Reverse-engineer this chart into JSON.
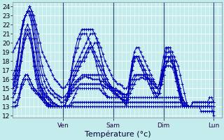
{
  "xlabel": "Température (°c)",
  "bg_color": "#c5eced",
  "grid_color": "#ffffff",
  "line_color": "#0000bb",
  "marker": "+",
  "ylim": [
    11.8,
    24.5
  ],
  "yticks": [
    12,
    13,
    14,
    15,
    16,
    17,
    18,
    19,
    20,
    21,
    22,
    23,
    24
  ],
  "day_labels": [
    "Ven",
    "Sam",
    "Dim",
    "Lun"
  ],
  "day_positions": [
    24,
    48,
    72,
    96
  ],
  "xlim": [
    0,
    100
  ],
  "x_total": 97,
  "tick_label_fontsize": 6.5,
  "axis_label_fontsize": 8,
  "series": [
    [
      19.0,
      19.5,
      20.0,
      20.5,
      21.0,
      22.0,
      23.0,
      23.5,
      24.0,
      23.5,
      23.0,
      22.0,
      21.0,
      20.0,
      19.0,
      18.5,
      18.0,
      17.5,
      17.0,
      16.5,
      16.0,
      15.8,
      15.5,
      15.2,
      15.0,
      15.2,
      15.5,
      16.0,
      16.5,
      17.0,
      17.5,
      18.0,
      18.5,
      19.0,
      19.5,
      20.0,
      20.5,
      21.0,
      21.0,
      21.0,
      20.5,
      20.0,
      19.5,
      18.8,
      18.0,
      17.5,
      17.0,
      16.5,
      16.0,
      15.8,
      15.5,
      15.5,
      15.3,
      15.0,
      15.0,
      15.2,
      16.5,
      18.0,
      18.5,
      18.5,
      18.0,
      17.5,
      17.0,
      16.5,
      16.0,
      15.5,
      15.0,
      14.5,
      14.5,
      14.5,
      15.0,
      16.0,
      17.5,
      19.0,
      19.5,
      19.5,
      19.0,
      18.5,
      18.0,
      17.5,
      16.5,
      15.5,
      14.5,
      13.5,
      13.0,
      13.0,
      13.0,
      13.0,
      13.0,
      13.0,
      13.0,
      13.0,
      13.0,
      13.0,
      13.0,
      13.0,
      12.0
    ],
    [
      16.5,
      17.0,
      18.0,
      19.5,
      21.0,
      22.0,
      23.0,
      23.5,
      24.0,
      23.5,
      22.5,
      21.5,
      20.0,
      18.5,
      17.5,
      16.5,
      16.0,
      15.5,
      15.0,
      14.8,
      14.5,
      14.3,
      14.2,
      14.0,
      14.0,
      14.2,
      14.5,
      15.0,
      15.5,
      16.0,
      16.5,
      17.0,
      17.5,
      18.0,
      18.5,
      19.0,
      19.5,
      20.0,
      19.5,
      19.0,
      18.5,
      18.0,
      17.5,
      17.0,
      16.5,
      16.0,
      15.5,
      15.2,
      15.0,
      14.8,
      14.7,
      14.6,
      14.5,
      14.4,
      14.3,
      14.5,
      16.0,
      17.5,
      18.5,
      18.5,
      18.0,
      17.5,
      17.0,
      16.5,
      16.0,
      15.5,
      15.0,
      14.5,
      14.0,
      14.0,
      14.5,
      15.5,
      16.5,
      17.5,
      18.0,
      18.5,
      18.0,
      17.5,
      17.0,
      16.0,
      15.0,
      14.0,
      13.5,
      13.0,
      13.0,
      13.0,
      13.0,
      13.0,
      13.0,
      13.0,
      13.0,
      13.0,
      13.0,
      13.0,
      13.0,
      13.0,
      13.0
    ],
    [
      16.0,
      16.5,
      17.5,
      19.0,
      21.0,
      22.5,
      23.0,
      23.5,
      23.5,
      23.0,
      22.0,
      20.5,
      19.0,
      17.5,
      16.5,
      15.8,
      15.2,
      14.8,
      14.5,
      14.3,
      14.0,
      14.0,
      13.8,
      13.5,
      13.5,
      13.8,
      14.2,
      14.8,
      15.5,
      16.0,
      16.5,
      17.0,
      17.5,
      18.0,
      18.0,
      18.5,
      19.0,
      19.5,
      19.0,
      18.5,
      18.0,
      17.5,
      17.0,
      16.5,
      16.0,
      15.5,
      15.0,
      14.8,
      14.5,
      14.3,
      14.2,
      14.0,
      13.9,
      13.8,
      13.7,
      14.0,
      15.5,
      17.0,
      18.0,
      18.5,
      18.5,
      18.0,
      17.5,
      17.0,
      16.5,
      16.0,
      15.5,
      15.0,
      14.5,
      14.0,
      14.5,
      15.5,
      16.5,
      17.5,
      18.0,
      18.5,
      18.0,
      17.5,
      16.5,
      15.5,
      14.5,
      13.8,
      13.5,
      13.2,
      13.0,
      13.0,
      13.0,
      13.0,
      13.0,
      13.0,
      13.0,
      13.0,
      13.0,
      13.0,
      13.5,
      13.5,
      13.5
    ],
    [
      15.5,
      16.2,
      17.5,
      19.5,
      21.5,
      22.5,
      23.0,
      23.5,
      23.5,
      22.5,
      21.0,
      19.5,
      18.0,
      16.5,
      15.5,
      15.0,
      14.5,
      14.0,
      13.8,
      13.5,
      13.3,
      13.2,
      13.0,
      13.0,
      13.0,
      13.2,
      13.8,
      14.5,
      15.5,
      16.5,
      17.0,
      17.5,
      18.0,
      18.0,
      18.5,
      19.0,
      19.5,
      19.5,
      19.5,
      20.0,
      20.0,
      19.5,
      18.5,
      17.5,
      16.5,
      16.0,
      15.5,
      15.0,
      14.8,
      14.5,
      14.3,
      14.0,
      13.8,
      13.7,
      13.5,
      14.0,
      16.0,
      17.5,
      18.5,
      18.5,
      18.5,
      18.0,
      17.5,
      17.0,
      16.5,
      16.0,
      15.5,
      15.0,
      14.5,
      14.0,
      14.5,
      15.8,
      17.0,
      18.5,
      19.0,
      19.0,
      18.5,
      18.0,
      17.0,
      15.5,
      14.0,
      13.2,
      13.0,
      13.0,
      13.0,
      13.0,
      13.0,
      13.0,
      13.0,
      13.0,
      13.0,
      13.0,
      13.0,
      13.0,
      13.0,
      13.0,
      13.0
    ],
    [
      15.0,
      15.8,
      17.0,
      19.0,
      21.0,
      22.5,
      23.0,
      23.5,
      23.0,
      22.0,
      20.5,
      19.0,
      17.0,
      15.5,
      14.5,
      14.0,
      13.5,
      13.0,
      13.0,
      13.0,
      13.0,
      13.0,
      13.0,
      13.0,
      13.0,
      13.2,
      14.0,
      15.5,
      17.0,
      18.5,
      19.5,
      20.5,
      21.0,
      21.5,
      21.5,
      21.5,
      21.5,
      21.5,
      21.5,
      21.0,
      20.5,
      19.5,
      18.5,
      17.5,
      16.5,
      16.0,
      15.5,
      15.0,
      14.8,
      14.5,
      14.2,
      14.0,
      13.8,
      13.5,
      13.2,
      13.5,
      16.0,
      18.0,
      19.0,
      19.5,
      19.5,
      19.0,
      18.5,
      18.0,
      17.5,
      17.0,
      16.5,
      16.0,
      15.5,
      15.0,
      15.5,
      17.0,
      18.5,
      19.5,
      19.5,
      19.0,
      18.5,
      18.0,
      17.0,
      15.5,
      14.0,
      13.2,
      13.0,
      13.0,
      13.0,
      13.0,
      13.0,
      13.0,
      13.0,
      13.0,
      12.5,
      12.5,
      12.5,
      12.5,
      12.5,
      12.5,
      12.5
    ],
    [
      15.5,
      15.8,
      16.5,
      17.5,
      19.0,
      20.5,
      21.5,
      22.0,
      21.5,
      20.5,
      19.0,
      17.5,
      16.5,
      15.5,
      15.0,
      14.5,
      14.2,
      14.0,
      13.8,
      13.5,
      13.3,
      13.2,
      13.0,
      13.0,
      13.0,
      13.2,
      13.8,
      14.5,
      15.0,
      15.5,
      15.8,
      16.0,
      16.2,
      16.5,
      16.5,
      16.5,
      16.5,
      16.5,
      16.5,
      16.5,
      16.5,
      16.5,
      16.5,
      16.0,
      15.8,
      15.5,
      15.3,
      15.2,
      15.0,
      15.0,
      14.8,
      14.7,
      14.5,
      14.3,
      14.0,
      14.5,
      15.5,
      16.0,
      16.5,
      16.5,
      16.5,
      16.5,
      16.5,
      16.5,
      16.5,
      16.5,
      16.0,
      15.8,
      15.5,
      15.0,
      15.5,
      16.5,
      17.5,
      18.5,
      18.5,
      18.5,
      18.0,
      17.5,
      16.5,
      15.5,
      14.5,
      13.8,
      13.5,
      13.2,
      13.0,
      13.0,
      13.5,
      13.5,
      13.5,
      13.5,
      13.5,
      13.5,
      13.5,
      13.5,
      14.0,
      14.0,
      13.5
    ],
    [
      15.0,
      15.3,
      16.0,
      17.0,
      18.5,
      20.0,
      21.0,
      21.5,
      21.0,
      20.0,
      18.5,
      17.0,
      16.0,
      15.2,
      14.8,
      14.3,
      14.0,
      13.8,
      13.5,
      13.3,
      13.0,
      13.0,
      13.0,
      13.0,
      13.0,
      13.2,
      13.8,
      14.2,
      14.8,
      15.2,
      15.5,
      15.8,
      16.0,
      16.2,
      16.3,
      16.3,
      16.2,
      16.2,
      16.0,
      16.0,
      16.0,
      16.0,
      15.8,
      15.8,
      15.5,
      15.3,
      15.2,
      15.0,
      15.0,
      14.8,
      14.7,
      14.5,
      14.3,
      14.0,
      14.0,
      14.5,
      15.0,
      15.5,
      16.0,
      16.5,
      16.5,
      16.5,
      16.5,
      16.3,
      16.2,
      16.0,
      15.8,
      15.5,
      15.2,
      15.0,
      15.5,
      16.5,
      17.3,
      18.0,
      18.0,
      18.0,
      17.8,
      17.2,
      16.2,
      15.2,
      14.0,
      13.5,
      13.2,
      13.0,
      13.0,
      13.0,
      13.5,
      13.5,
      13.5,
      13.5,
      13.5,
      13.5,
      13.5,
      13.5,
      13.5,
      13.5,
      13.5
    ],
    [
      14.5,
      14.8,
      15.5,
      16.5,
      18.0,
      19.5,
      20.5,
      21.0,
      20.5,
      19.5,
      18.0,
      16.5,
      15.5,
      14.8,
      14.3,
      13.8,
      13.5,
      13.3,
      13.0,
      13.0,
      13.0,
      13.0,
      13.0,
      13.0,
      13.0,
      13.2,
      13.8,
      14.2,
      14.5,
      14.8,
      15.0,
      15.2,
      15.5,
      15.5,
      15.5,
      15.5,
      15.5,
      15.5,
      15.5,
      15.5,
      15.5,
      15.5,
      15.5,
      15.3,
      15.2,
      15.0,
      15.0,
      14.8,
      14.7,
      14.5,
      14.3,
      14.0,
      13.8,
      13.5,
      13.3,
      13.8,
      14.5,
      15.0,
      15.5,
      16.0,
      16.0,
      16.2,
      16.2,
      16.0,
      16.0,
      16.0,
      15.8,
      15.5,
      15.2,
      15.0,
      15.5,
      16.3,
      17.0,
      17.5,
      17.5,
      17.5,
      17.3,
      16.8,
      15.8,
      14.8,
      13.8,
      13.2,
      13.0,
      13.0,
      13.0,
      13.0,
      13.0,
      13.0,
      13.0,
      13.0,
      13.0,
      13.0,
      13.0,
      13.0,
      13.0,
      13.0,
      13.0
    ],
    [
      14.0,
      14.5,
      15.2,
      16.5,
      18.0,
      19.5,
      20.5,
      21.0,
      20.5,
      19.5,
      17.5,
      16.0,
      15.0,
      14.2,
      13.8,
      13.5,
      13.2,
      13.0,
      13.0,
      13.0,
      13.0,
      13.0,
      13.0,
      13.0,
      13.0,
      13.2,
      14.0,
      15.0,
      16.5,
      18.0,
      19.0,
      19.5,
      20.5,
      21.0,
      21.0,
      21.0,
      20.5,
      20.0,
      19.5,
      18.5,
      17.5,
      16.5,
      15.5,
      15.0,
      14.5,
      14.0,
      14.0,
      14.0,
      14.0,
      14.0,
      14.0,
      14.0,
      14.0,
      14.0,
      14.0,
      14.5,
      16.0,
      17.5,
      18.5,
      18.5,
      18.5,
      18.0,
      17.5,
      17.0,
      16.5,
      16.0,
      15.5,
      15.0,
      14.5,
      14.0,
      14.5,
      15.5,
      16.5,
      17.5,
      18.0,
      18.5,
      18.0,
      17.5,
      16.5,
      15.5,
      14.5,
      13.5,
      13.2,
      13.0,
      13.0,
      13.0,
      13.0,
      13.0,
      13.0,
      13.0,
      13.0,
      13.0,
      13.0,
      13.0,
      13.0,
      13.0,
      13.0
    ],
    [
      13.5,
      13.5,
      13.8,
      14.5,
      15.5,
      16.0,
      16.5,
      16.5,
      16.0,
      15.5,
      15.0,
      14.8,
      14.5,
      14.3,
      14.0,
      13.8,
      13.5,
      13.3,
      13.2,
      13.0,
      13.0,
      13.0,
      13.0,
      13.0,
      13.0,
      13.0,
      13.0,
      13.0,
      13.2,
      13.5,
      13.5,
      13.5,
      13.5,
      13.5,
      13.5,
      13.5,
      13.5,
      13.5,
      13.5,
      13.5,
      13.5,
      13.5,
      13.5,
      13.5,
      13.5,
      13.5,
      13.5,
      13.5,
      13.5,
      13.5,
      13.5,
      13.5,
      13.5,
      13.5,
      13.5,
      13.5,
      13.5,
      13.5,
      13.5,
      13.5,
      13.5,
      13.5,
      13.5,
      13.5,
      13.5,
      13.5,
      13.5,
      13.5,
      13.5,
      13.5,
      13.5,
      13.5,
      13.5,
      13.5,
      13.5,
      13.5,
      13.5,
      13.5,
      13.5,
      13.5,
      13.5,
      13.3,
      13.0,
      13.0,
      13.0,
      13.0,
      13.0,
      13.0,
      13.0,
      13.0,
      13.0,
      13.0,
      13.0,
      13.0,
      13.0,
      13.0,
      13.0
    ],
    [
      13.0,
      13.0,
      13.2,
      14.0,
      15.0,
      15.5,
      16.0,
      16.0,
      15.5,
      15.0,
      14.8,
      14.5,
      14.3,
      14.0,
      13.8,
      13.5,
      13.3,
      13.2,
      13.0,
      13.0,
      13.0,
      13.0,
      13.0,
      13.0,
      13.0,
      13.0,
      13.0,
      13.0,
      13.0,
      13.0,
      13.0,
      13.0,
      13.0,
      13.0,
      13.0,
      13.0,
      13.0,
      13.0,
      13.0,
      13.0,
      13.0,
      13.0,
      13.0,
      13.0,
      13.0,
      13.0,
      13.0,
      13.0,
      13.0,
      13.0,
      13.0,
      13.0,
      13.0,
      13.0,
      13.0,
      13.0,
      13.0,
      13.0,
      13.0,
      13.0,
      13.0,
      13.0,
      13.0,
      13.0,
      13.0,
      13.0,
      13.0,
      13.0,
      13.0,
      13.0,
      13.0,
      13.0,
      13.0,
      13.0,
      13.0,
      13.0,
      13.0,
      13.0,
      13.0,
      13.0,
      13.0,
      13.0,
      13.0,
      13.0,
      13.0,
      13.0,
      13.0,
      13.0,
      13.0,
      13.0,
      13.0,
      13.0,
      13.0,
      13.0,
      13.0,
      13.0,
      13.0
    ],
    [
      13.0,
      13.0,
      13.2,
      14.0,
      15.2,
      16.0,
      16.5,
      16.5,
      16.0,
      15.5,
      15.0,
      14.8,
      14.5,
      14.2,
      14.0,
      13.8,
      13.5,
      13.3,
      13.2,
      13.0,
      13.0,
      13.0,
      13.0,
      13.0,
      13.0,
      13.0,
      13.0,
      13.2,
      13.5,
      14.0,
      14.5,
      15.0,
      15.0,
      15.0,
      15.0,
      15.0,
      15.0,
      15.0,
      15.0,
      15.0,
      15.0,
      15.0,
      14.8,
      14.5,
      14.3,
      14.2,
      14.0,
      14.0,
      14.0,
      14.0,
      14.0,
      14.0,
      14.0,
      14.0,
      14.0,
      14.0,
      14.0,
      14.0,
      14.0,
      14.0,
      14.0,
      14.0,
      14.0,
      14.0,
      14.0,
      14.0,
      14.0,
      14.0,
      14.0,
      14.0,
      14.0,
      14.0,
      14.0,
      14.0,
      14.0,
      14.0,
      14.0,
      14.0,
      14.0,
      14.0,
      14.0,
      13.8,
      13.5,
      13.2,
      13.0,
      13.0,
      13.0,
      13.0,
      13.0,
      13.0,
      13.0,
      13.0,
      13.0,
      13.0,
      13.0,
      13.0,
      13.0
    ]
  ]
}
